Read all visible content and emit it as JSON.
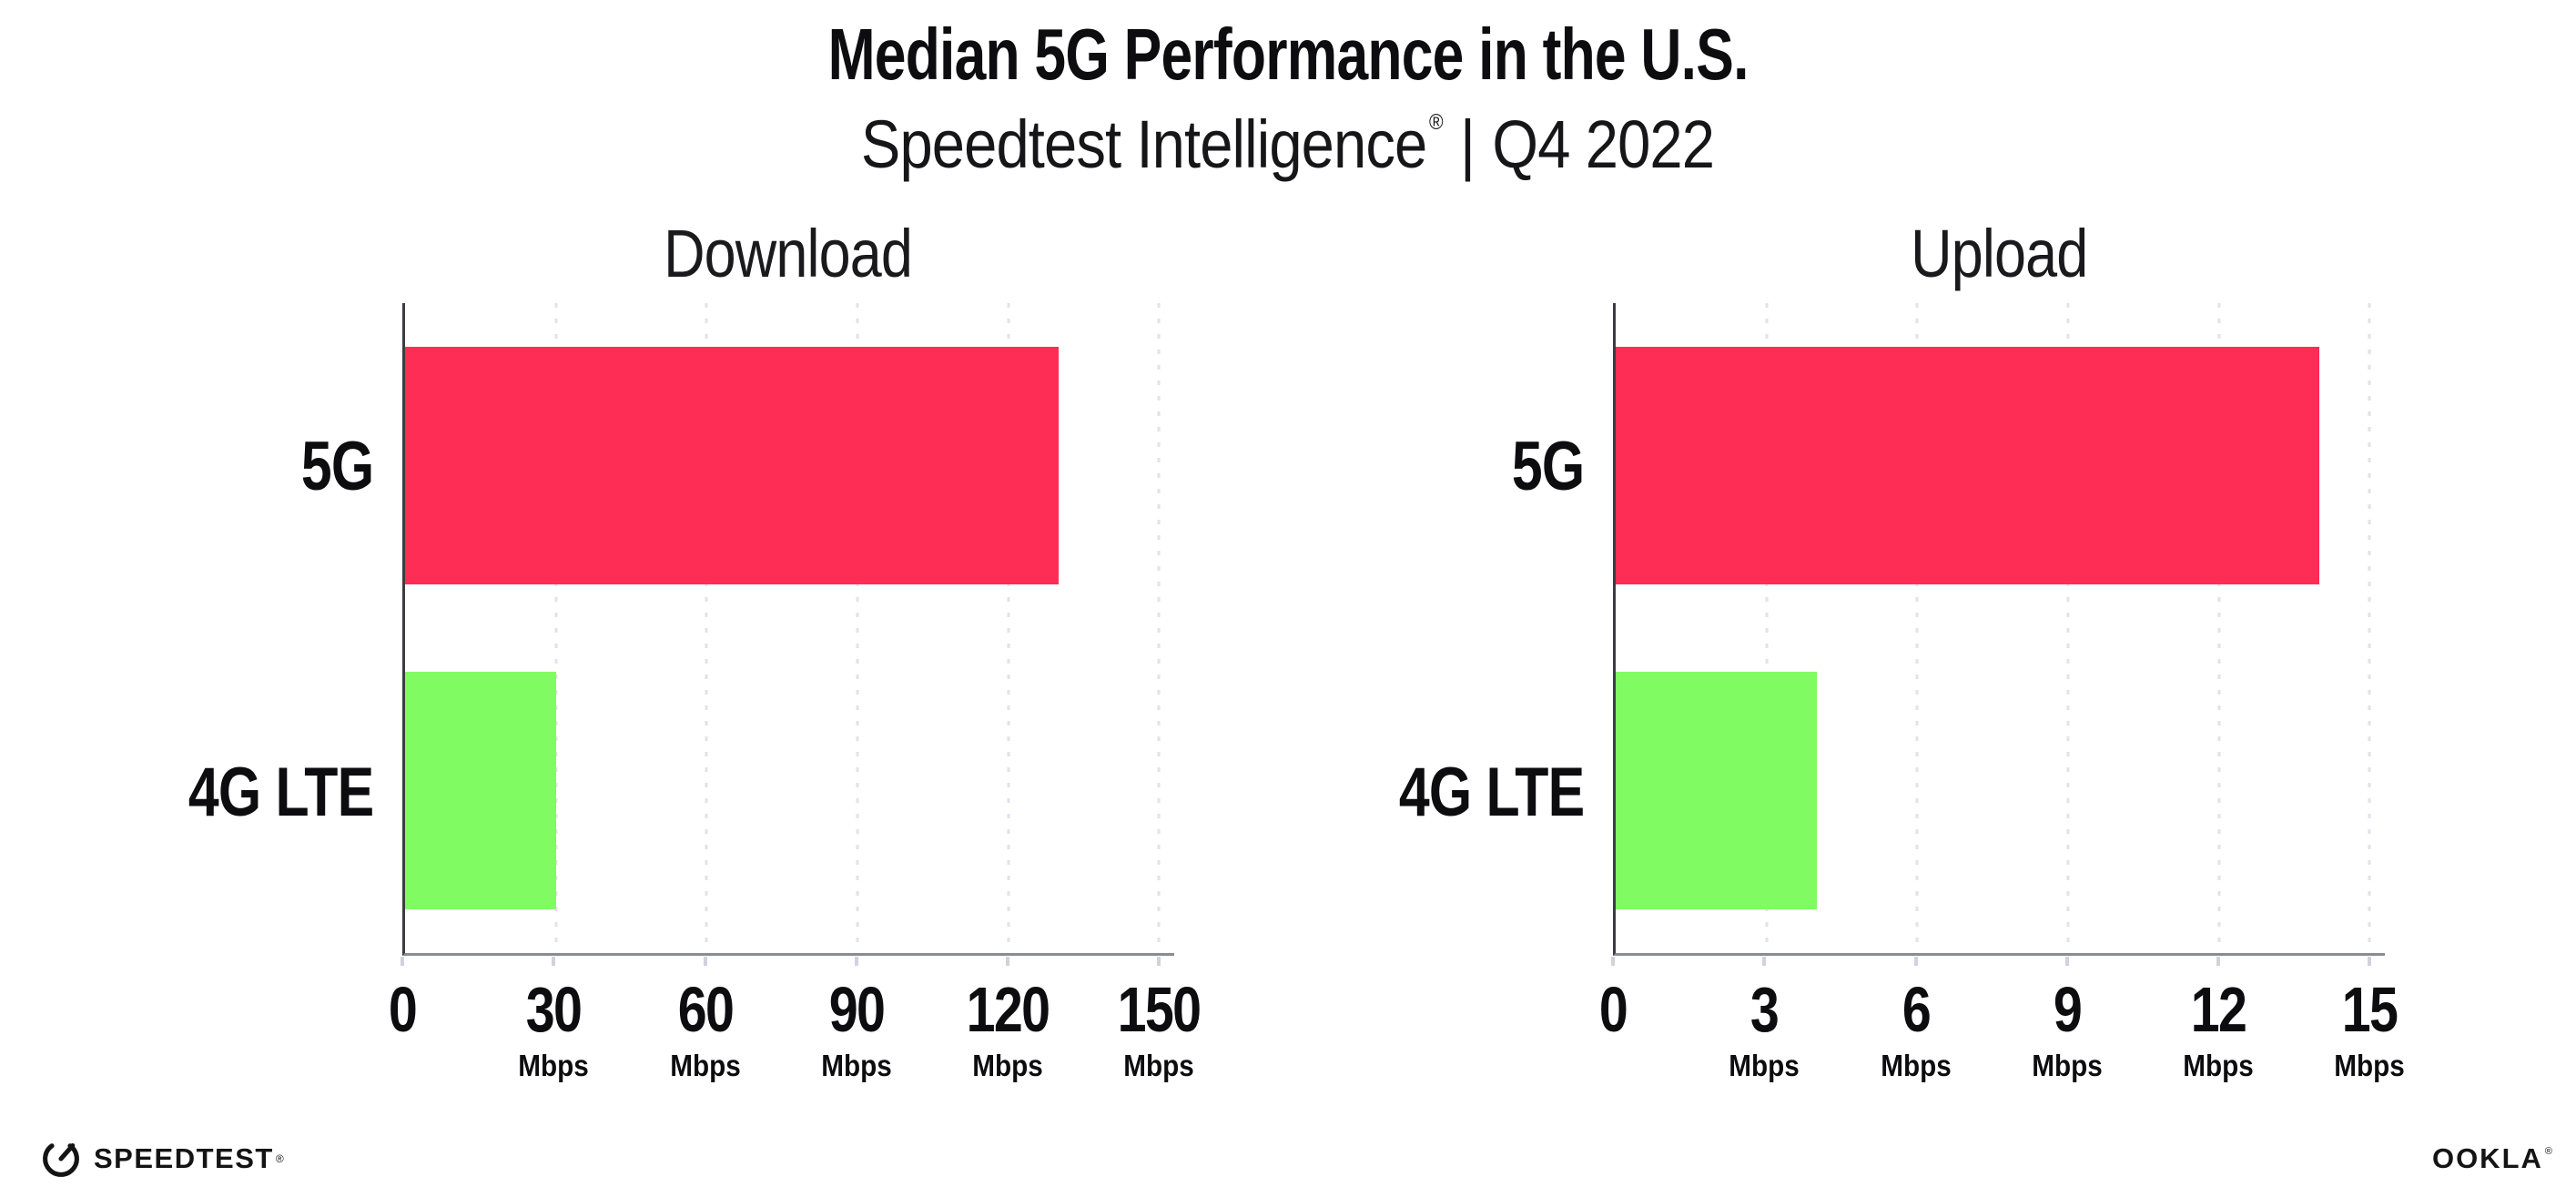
{
  "header": {
    "title": "Median 5G Performance in the U.S.",
    "subtitle_product": "Speedtest Intelligence",
    "subtitle_registered_mark": "®",
    "subtitle_separator": "|",
    "subtitle_period": "Q4 2022"
  },
  "chart_data": [
    {
      "type": "bar",
      "orientation": "horizontal",
      "title": "Download",
      "categories": [
        "5G",
        "4G LTE"
      ],
      "values": [
        130,
        30
      ],
      "value_unit": "Mbps",
      "xlim": [
        0,
        150
      ],
      "x_ticks": [
        {
          "value": 0,
          "label": "0",
          "unit": ""
        },
        {
          "value": 30,
          "label": "30",
          "unit": "Mbps"
        },
        {
          "value": 60,
          "label": "60",
          "unit": "Mbps"
        },
        {
          "value": 90,
          "label": "90",
          "unit": "Mbps"
        },
        {
          "value": 120,
          "label": "120",
          "unit": "Mbps"
        },
        {
          "value": 150,
          "label": "150",
          "unit": "Mbps"
        }
      ],
      "bar_colors": [
        "#FD2D55",
        "#80FB62"
      ],
      "grid": "vertical dotted lines at each tick",
      "legend": "none"
    },
    {
      "type": "bar",
      "orientation": "horizontal",
      "title": "Upload",
      "categories": [
        "5G",
        "4G LTE"
      ],
      "values": [
        14,
        4
      ],
      "value_unit": "Mbps",
      "xlim": [
        0,
        15
      ],
      "x_ticks": [
        {
          "value": 0,
          "label": "0",
          "unit": ""
        },
        {
          "value": 3,
          "label": "3",
          "unit": "Mbps"
        },
        {
          "value": 6,
          "label": "6",
          "unit": "Mbps"
        },
        {
          "value": 9,
          "label": "9",
          "unit": "Mbps"
        },
        {
          "value": 12,
          "label": "12",
          "unit": "Mbps"
        },
        {
          "value": 15,
          "label": "15",
          "unit": "Mbps"
        }
      ],
      "bar_colors": [
        "#FD2D55",
        "#80FB62"
      ],
      "grid": "vertical dotted lines at each tick",
      "legend": "none"
    }
  ],
  "footer": {
    "speedtest_logo_text": "SPEEDTEST",
    "speedtest_registered_mark": "®",
    "ookla_logo_text": "OOKLA",
    "ookla_registered_mark": "®"
  },
  "colors": {
    "bar_5g": "#FD2D55",
    "bar_4g_lte": "#80FB62",
    "background": "#FFFFFF",
    "text": "#111111",
    "axis_left": "#3C3C44",
    "axis_bottom": "#8B8B93",
    "gridline": "#E2E2EC",
    "tick_mark": "#D2D2DC"
  }
}
